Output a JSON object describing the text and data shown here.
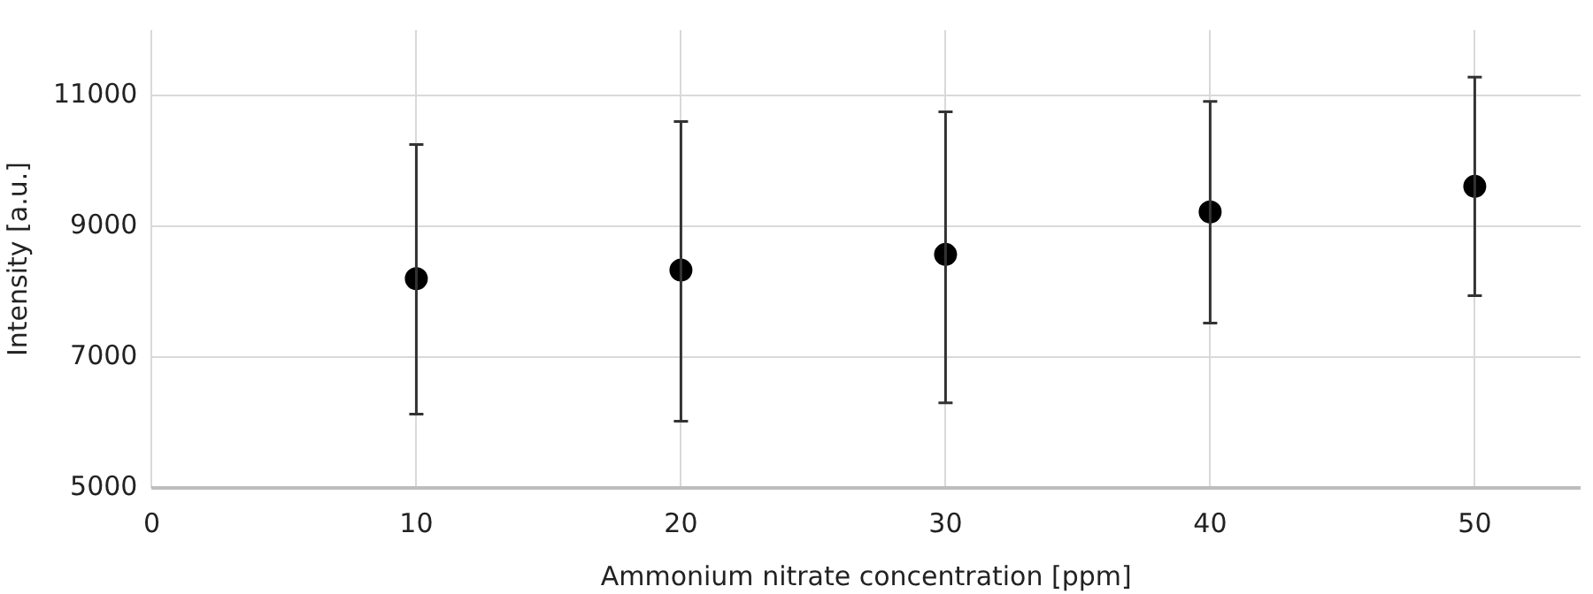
{
  "chart_data": {
    "type": "scatter",
    "xlabel": "Ammonium nitrate concentration [ppm]",
    "ylabel": "Intensity [a.u.]",
    "x": [
      10,
      20,
      30,
      40,
      50
    ],
    "values": [
      8200,
      8330,
      8570,
      9220,
      9610
    ],
    "errors": [
      [
        6130,
        10250
      ],
      [
        6020,
        10600
      ],
      [
        6300,
        10750
      ],
      [
        7520,
        10910
      ],
      [
        7940,
        11280
      ]
    ],
    "color": "#000000",
    "marker": "circle",
    "xlim": [
      0,
      54
    ],
    "xticks": [
      0,
      10,
      20,
      30,
      40,
      50
    ],
    "ylim": [
      5000,
      12000
    ],
    "yticks": [
      5000,
      7000,
      9000,
      11000
    ],
    "grid": true
  }
}
